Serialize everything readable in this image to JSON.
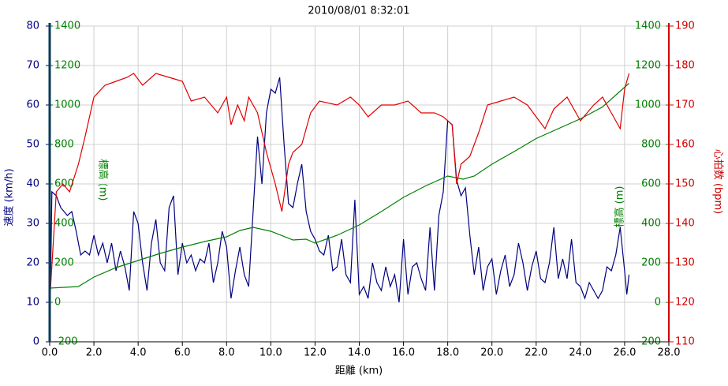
{
  "chart_data": {
    "type": "line",
    "title": "2010/08/01 8:32:01",
    "x_label": "距離 (km)",
    "y_label": "速度 (km/h)",
    "y2_label": "標高 (m)",
    "y3_label": "心拍数 (bpm)",
    "xlim": [
      0,
      28
    ],
    "xticks": [
      {
        "value": 0,
        "label": "0.0"
      },
      {
        "value": 2,
        "label": "2.0"
      },
      {
        "value": 4,
        "label": "4.0"
      },
      {
        "value": 6,
        "label": "6.0"
      },
      {
        "value": 8,
        "label": "8.0"
      },
      {
        "value": 10,
        "label": "10.0"
      },
      {
        "value": 12,
        "label": "12.0"
      },
      {
        "value": 14,
        "label": "14.0"
      },
      {
        "value": 16,
        "label": "16.0"
      },
      {
        "value": 18,
        "label": "18.0"
      },
      {
        "value": 20,
        "label": "20.0"
      },
      {
        "value": 22,
        "label": "22.0"
      },
      {
        "value": 24,
        "label": "24.0"
      },
      {
        "value": 26,
        "label": "26.0"
      },
      {
        "value": 28,
        "label": "28.0"
      }
    ],
    "ylim": [
      0,
      80
    ],
    "yticks": [
      0,
      10,
      20,
      30,
      40,
      50,
      60,
      70,
      80
    ],
    "y2lim": [
      -200,
      1400
    ],
    "y2ticks": [
      -200,
      0,
      200,
      400,
      600,
      800,
      1000,
      1200,
      1400
    ],
    "y3lim": [
      110,
      190
    ],
    "y3ticks": [
      110,
      120,
      130,
      140,
      150,
      160,
      170,
      180,
      190
    ],
    "grid": true,
    "series": [
      {
        "name": "速度",
        "axis": "y",
        "color": "#000080",
        "x": [
          0,
          0.1,
          0.3,
          0.5,
          0.8,
          1.0,
          1.2,
          1.4,
          1.6,
          1.8,
          2.0,
          2.2,
          2.4,
          2.6,
          2.8,
          3.0,
          3.2,
          3.4,
          3.6,
          3.8,
          4.0,
          4.2,
          4.4,
          4.6,
          4.8,
          5.0,
          5.2,
          5.4,
          5.6,
          5.8,
          6.0,
          6.2,
          6.4,
          6.6,
          6.8,
          7.0,
          7.2,
          7.4,
          7.6,
          7.8,
          8.0,
          8.2,
          8.4,
          8.6,
          8.8,
          9.0,
          9.2,
          9.4,
          9.6,
          9.8,
          10.0,
          10.2,
          10.4,
          10.6,
          10.8,
          11.0,
          11.2,
          11.4,
          11.6,
          11.8,
          12.0,
          12.2,
          12.4,
          12.6,
          12.8,
          13.0,
          13.2,
          13.4,
          13.6,
          13.8,
          14.0,
          14.2,
          14.4,
          14.6,
          14.8,
          15.0,
          15.2,
          15.4,
          15.6,
          15.8,
          16.0,
          16.2,
          16.4,
          16.6,
          16.8,
          17.0,
          17.2,
          17.4,
          17.6,
          17.8,
          18.0,
          18.2,
          18.4,
          18.6,
          18.8,
          19.0,
          19.2,
          19.4,
          19.6,
          19.8,
          20.0,
          20.2,
          20.4,
          20.6,
          20.8,
          21.0,
          21.2,
          21.4,
          21.6,
          21.8,
          22.0,
          22.2,
          22.4,
          22.6,
          22.8,
          23.0,
          23.2,
          23.4,
          23.6,
          23.8,
          24.0,
          24.2,
          24.4,
          24.6,
          24.8,
          25.0,
          25.2,
          25.4,
          25.6,
          25.8,
          26.0,
          26.1,
          26.2
        ],
        "values": [
          0,
          38,
          37,
          34,
          32,
          33,
          28,
          22,
          23,
          22,
          27,
          22,
          25,
          20,
          25,
          18,
          23,
          19,
          13,
          33,
          30,
          20,
          13,
          25,
          31,
          20,
          18,
          34,
          37,
          17,
          25,
          20,
          22,
          18,
          21,
          20,
          25,
          15,
          20,
          28,
          24,
          11,
          18,
          24,
          17,
          14,
          33,
          52,
          40,
          58,
          64,
          63,
          67,
          50,
          35,
          34,
          40,
          45,
          33,
          28,
          26,
          23,
          22,
          27,
          18,
          19,
          26,
          17,
          15,
          36,
          12,
          14,
          11,
          20,
          15,
          13,
          19,
          14,
          17,
          10,
          26,
          12,
          19,
          20,
          16,
          13,
          29,
          13,
          32,
          38,
          56,
          55,
          41,
          37,
          39,
          27,
          17,
          24,
          13,
          19,
          21,
          12,
          18,
          22,
          14,
          17,
          25,
          20,
          13,
          19,
          23,
          16,
          15,
          20,
          29,
          16,
          21,
          16,
          26,
          15,
          14,
          11,
          15,
          13,
          11,
          13,
          19,
          18,
          22,
          29,
          18,
          12,
          17
        ]
      },
      {
        "name": "標高",
        "axis": "y2",
        "color": "#008000",
        "x": [
          0,
          1.3,
          2.0,
          3.0,
          4.0,
          5.0,
          6.0,
          7.0,
          8.0,
          8.6,
          9.2,
          10.0,
          11.0,
          11.6,
          12.0,
          13.0,
          14.0,
          15.0,
          16.0,
          17.0,
          18.0,
          18.7,
          19.2,
          20.0,
          21.0,
          22.0,
          23.0,
          24.0,
          25.0,
          26.0,
          26.2
        ],
        "values": [
          72,
          80,
          128,
          176,
          212,
          248,
          280,
          308,
          332,
          364,
          380,
          360,
          316,
          320,
          300,
          340,
          392,
          460,
          532,
          590,
          640,
          624,
          640,
          700,
          764,
          830,
          880,
          930,
          990,
          1090,
          1110
        ]
      },
      {
        "name": "心拍数",
        "axis": "y3",
        "color": "#e00000",
        "x": [
          0,
          0.3,
          0.6,
          0.9,
          1.3,
          1.6,
          2.0,
          2.5,
          3.0,
          3.5,
          3.8,
          4.2,
          4.8,
          5.4,
          6.0,
          6.4,
          7.0,
          7.6,
          8.0,
          8.2,
          8.5,
          8.8,
          9.0,
          9.4,
          9.8,
          10.2,
          10.5,
          10.8,
          11.0,
          11.4,
          11.8,
          12.2,
          13.0,
          13.6,
          14.0,
          14.4,
          15.0,
          15.6,
          16.2,
          16.8,
          17.4,
          17.8,
          18.2,
          18.4,
          18.6,
          19.0,
          19.4,
          19.8,
          20.4,
          21.0,
          21.6,
          22.0,
          22.4,
          22.8,
          23.4,
          24.0,
          24.6,
          25.0,
          25.6,
          25.8,
          26.0,
          26.2
        ],
        "values": [
          120,
          148,
          150,
          148,
          155,
          162,
          172,
          175,
          176,
          177,
          178,
          175,
          178,
          177,
          176,
          171,
          172,
          168,
          172,
          165,
          170,
          166,
          172,
          168,
          158,
          150,
          143,
          155,
          158,
          160,
          168,
          171,
          170,
          172,
          170,
          167,
          170,
          170,
          171,
          168,
          168,
          167,
          165,
          150,
          155,
          157,
          163,
          170,
          171,
          172,
          170,
          167,
          164,
          169,
          172,
          166,
          170,
          172,
          166,
          164,
          174,
          178
        ]
      }
    ]
  }
}
